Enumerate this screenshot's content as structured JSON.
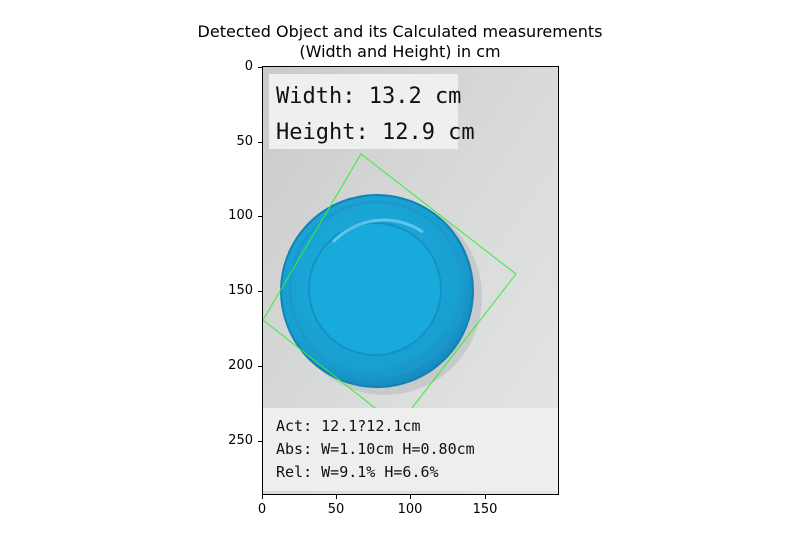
{
  "figure": {
    "title_line1": "Detected Object and its Calculated measurements",
    "title_line2": "(Width and Height) in cm"
  },
  "image_overlay": {
    "top_box": {
      "width_text": "Width: 13.2 cm",
      "height_text": "Height: 12.9 cm"
    },
    "bottom_box": {
      "actual_text": "Act: 12.1?12.1cm",
      "absolute_error_text": "Abs: W=1.10cm H=0.80cm",
      "relative_error_text": "Rel: W=9.1% H=6.6%"
    },
    "box_color": "#33ee33",
    "lid_color": "#1aa8d8"
  },
  "axes": {
    "x_ticks": [
      "0",
      "50",
      "100",
      "150"
    ],
    "y_ticks": [
      "0",
      "50",
      "100",
      "150",
      "200",
      "250"
    ]
  }
}
